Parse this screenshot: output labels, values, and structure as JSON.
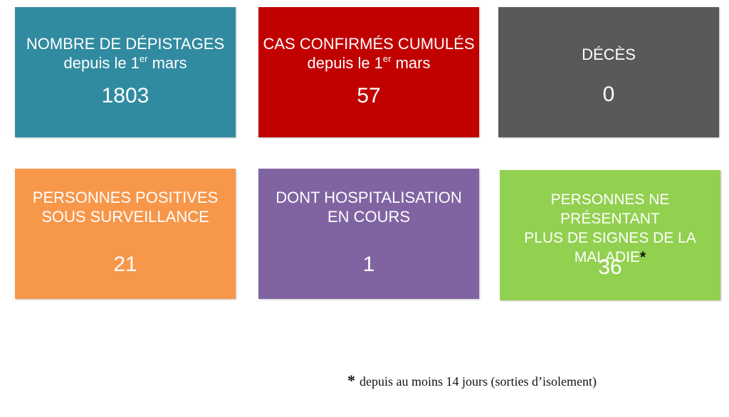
{
  "colors": {
    "depistages": "#318ba0",
    "cas": "#c10000",
    "deces": "#595959",
    "positives": "#f7974a",
    "hospitalisation": "#8064a2",
    "gueris": "#92d050"
  },
  "cards": {
    "depistages": {
      "title": "NOMBRE DE DÉPISTAGES",
      "sub_prefix": "depuis le 1",
      "sub_sup": "er",
      "sub_suffix": " mars",
      "value": "1803"
    },
    "cas": {
      "title": "CAS CONFIRMÉS CUMULÉS",
      "sub_prefix": "depuis le 1",
      "sub_sup": "er",
      "sub_suffix": " mars",
      "value": "57"
    },
    "deces": {
      "title": "DÉCÈS",
      "value": "0"
    },
    "positives": {
      "title_line1": "PERSONNES POSITIVES",
      "title_line2": "SOUS SURVEILLANCE",
      "value": "21"
    },
    "hospitalisation": {
      "title_line1": "DONT HOSPITALISATION",
      "title_line2": "EN COURS",
      "value": "1"
    },
    "gueris": {
      "title_line1": "PERSONNES NE PRÉSENTANT",
      "title_line2": "PLUS DE SIGNES DE LA",
      "title_line3": "MALADIE",
      "title_marker": "*",
      "value": "36"
    }
  },
  "footnote": {
    "marker": "*",
    "text": "depuis au moins 14 jours (sorties d’isolement)"
  }
}
